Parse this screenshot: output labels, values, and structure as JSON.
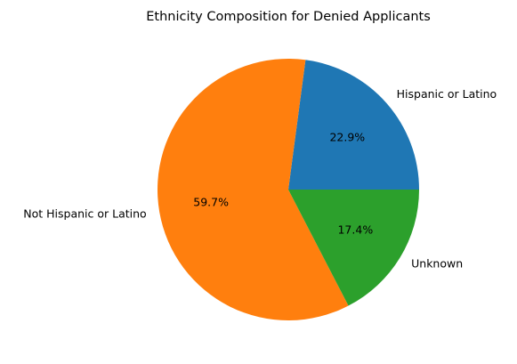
{
  "chart_data": {
    "type": "pie",
    "title": "Ethnicity Composition for Denied Applicants",
    "slices": [
      {
        "label": "Hispanic or Latino",
        "percent_label": "22.9%",
        "value": 22.9,
        "color": "#1f77b4"
      },
      {
        "label": "Not Hispanic or Latino",
        "percent_label": "59.7%",
        "value": 59.7,
        "color": "#ff7f0e"
      },
      {
        "label": "Unknown",
        "percent_label": "17.4%",
        "value": 17.4,
        "color": "#2ca02c"
      }
    ],
    "start_angle_deg": 0,
    "direction": "counterclockwise",
    "legend": "none"
  }
}
